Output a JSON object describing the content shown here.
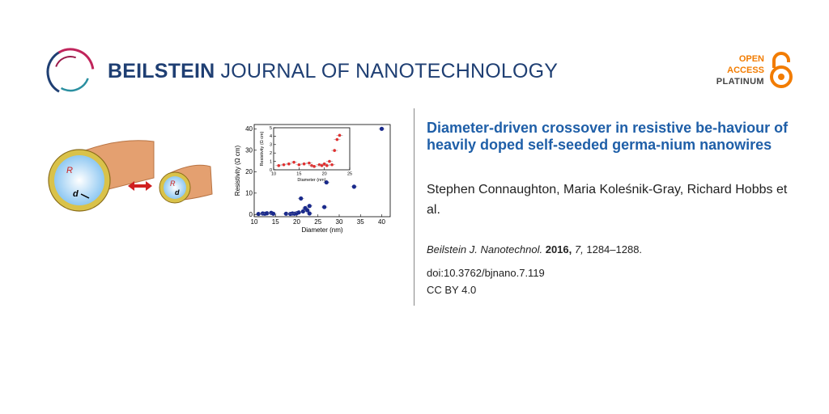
{
  "header": {
    "journal_bold": "BEILSTEIN",
    "journal_rest": " JOURNAL OF NANOTECHNOLOGY",
    "oa_line1": "OPEN",
    "oa_line2": "ACCESS",
    "oa_line3": "PLATINUM",
    "oa_icon": "open-lock-icon"
  },
  "article": {
    "title": "Diameter-driven crossover in resistive be-haviour of heavily doped self-seeded germa-nium nanowires",
    "authors": "Stephen Connaughton, Maria Koleśnik-Gray, Richard Hobbs et al.",
    "journal_abbrev": "Beilstein J. Nanotechnol.",
    "year": "2016,",
    "volume": "7,",
    "pages": "1284–1288.",
    "doi": "doi:10.3762/bjnano.7.119",
    "license": "CC BY 4.0"
  },
  "graphic": {
    "label_R": "R",
    "label_d": "d",
    "label_R_small": "R",
    "label_d_small": "d"
  },
  "chart_data": {
    "type": "scatter",
    "xlabel": "Diameter (nm)",
    "ylabel": "Resistivity (Ω cm)",
    "xlim": [
      10,
      42
    ],
    "ylim": [
      -1,
      42
    ],
    "xticks": [
      10,
      15,
      20,
      25,
      30,
      35,
      40
    ],
    "yticks": [
      0,
      10,
      20,
      30,
      40
    ],
    "x": [
      11,
      12,
      12.5,
      13,
      14,
      14.5,
      17.5,
      18.5,
      19,
      19.5,
      20,
      20.5,
      21,
      21.5,
      22,
      22.5,
      23,
      23,
      26.5,
      27,
      33.5,
      40
    ],
    "y": [
      0.3,
      0.5,
      0.4,
      0.6,
      0.8,
      0.4,
      0.4,
      0.3,
      0.5,
      0.4,
      0.6,
      1,
      7.5,
      1.5,
      3,
      2,
      4,
      0.5,
      3.5,
      15,
      13,
      40
    ],
    "inset": {
      "xlabel": "Diameter (nm)",
      "ylabel": "Resistivity (Ω cm)",
      "xlim": [
        10,
        25
      ],
      "ylim": [
        0,
        5
      ],
      "xticks": [
        10,
        15,
        20,
        25
      ],
      "yticks": [
        0,
        1,
        2,
        3,
        4,
        5
      ],
      "x": [
        11,
        12,
        13,
        14,
        15,
        16,
        17,
        17.5,
        18,
        19,
        19.5,
        20,
        20.5,
        21,
        21.5,
        22,
        22.5,
        23
      ],
      "y": [
        0.5,
        0.6,
        0.7,
        0.9,
        0.6,
        0.7,
        0.8,
        0.5,
        0.4,
        0.6,
        0.5,
        0.7,
        0.5,
        1.0,
        0.6,
        2.3,
        3.6,
        4.1
      ],
      "color": "#e03030"
    },
    "color": "#1a2a8c"
  }
}
